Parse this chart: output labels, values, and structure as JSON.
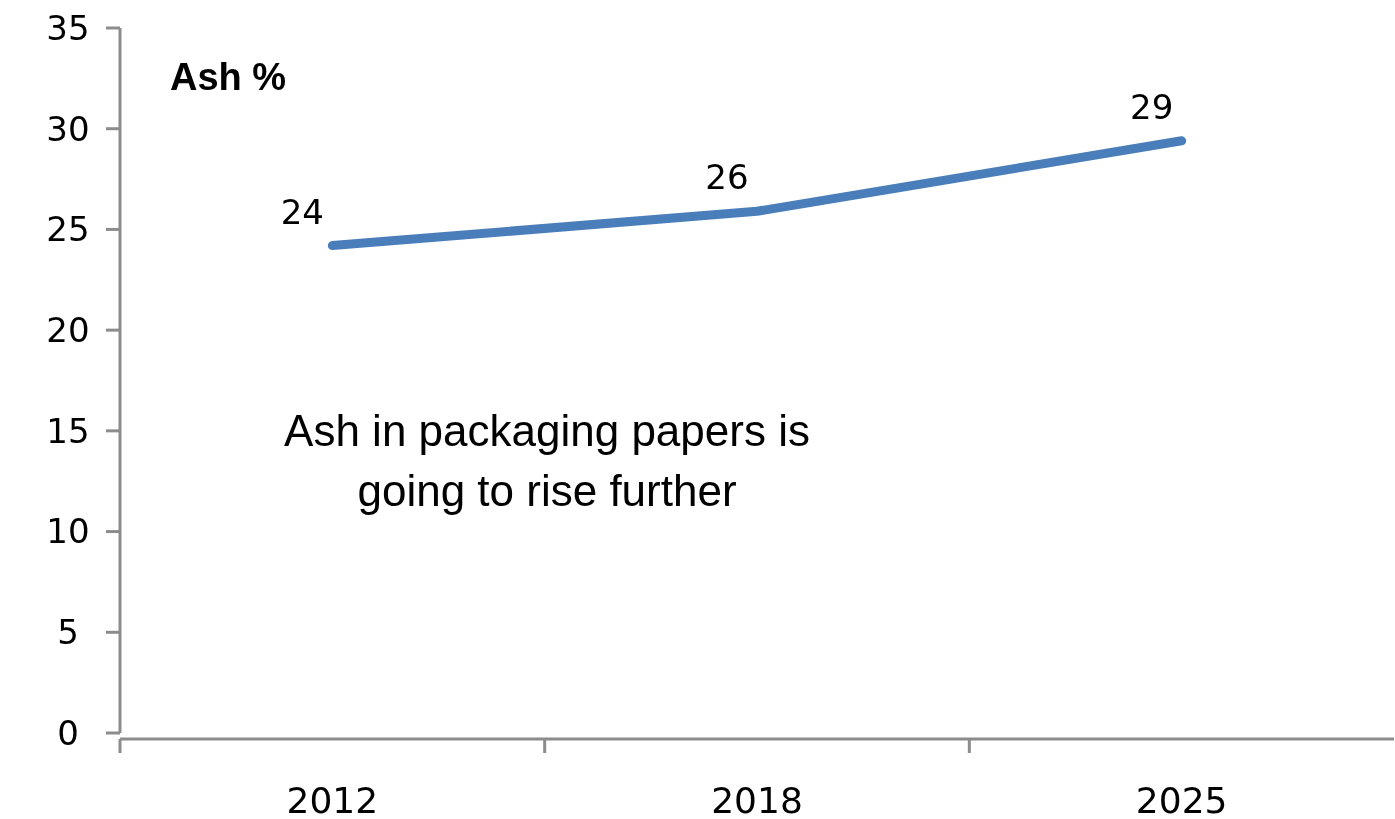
{
  "chart_data": {
    "type": "line",
    "title": "Ash %",
    "categories": [
      "2012",
      "2018",
      "2025"
    ],
    "series": [
      {
        "color": "#4a7ebb",
        "values": [
          24.2,
          25.9,
          29.4
        ],
        "value_labels": [
          "24",
          "26",
          "29"
        ]
      }
    ],
    "ylim": [
      0,
      35
    ],
    "yticks": [
      0,
      5,
      10,
      15,
      20,
      25,
      30,
      35
    ],
    "grid": false,
    "marker": "none",
    "line_style": "solid",
    "annotations": [
      "Ash in packaging papers is going to rise further"
    ]
  }
}
